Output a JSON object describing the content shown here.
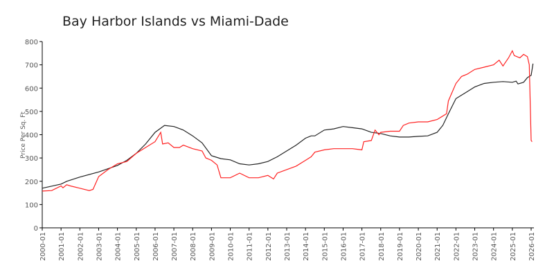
{
  "chart_data": {
    "type": "line",
    "title": "Bay Harbor Islands vs Miami-Dade",
    "xlabel": "",
    "ylabel": "Price Per Sq. Ft",
    "ylim": [
      0,
      800
    ],
    "xlim": [
      2000,
      2026.15
    ],
    "yticks": [
      0,
      100,
      200,
      300,
      400,
      500,
      600,
      700,
      800
    ],
    "xticks": [
      "2000-01",
      "2001-01",
      "2002-01",
      "2003-01",
      "2004-01",
      "2005-01",
      "2006-01",
      "2007-01",
      "2008-01",
      "2009-01",
      "2010-01",
      "2011-01",
      "2012-01",
      "2013-01",
      "2014-01",
      "2015-01",
      "2016-01",
      "2017-01",
      "2018-01",
      "2019-01",
      "2020-01",
      "2021-01",
      "2022-01",
      "2023-01",
      "2024-01",
      "2025-01",
      "2026-01"
    ],
    "grid": false,
    "series": [
      {
        "name": "Miami-Dade",
        "color": "#222222",
        "x": [
          2000,
          2001,
          2001.3,
          2002,
          2003,
          2004,
          2004.5,
          2005,
          2005.5,
          2006,
          2006.5,
          2007,
          2007.5,
          2008,
          2008.5,
          2009,
          2009.5,
          2010,
          2010.5,
          2011,
          2011.5,
          2012,
          2012.5,
          2013,
          2013.5,
          2014,
          2014.3,
          2014.5,
          2015,
          2015.5,
          2016,
          2016.5,
          2017,
          2017.5,
          2018,
          2018.5,
          2019,
          2019.5,
          2020,
          2020.5,
          2021,
          2021.3,
          2021.6,
          2022,
          2022.5,
          2023,
          2023.5,
          2024,
          2024.5,
          2025,
          2025.2,
          2025.3,
          2025.6,
          2025.8,
          2026,
          2026.1
        ],
        "y": [
          170,
          188,
          200,
          218,
          240,
          268,
          290,
          320,
          360,
          410,
          440,
          435,
          420,
          395,
          365,
          310,
          297,
          292,
          275,
          270,
          275,
          285,
          305,
          330,
          355,
          385,
          395,
          395,
          420,
          425,
          435,
          430,
          425,
          410,
          405,
          395,
          390,
          390,
          393,
          395,
          410,
          440,
          490,
          555,
          580,
          605,
          620,
          625,
          628,
          625,
          630,
          618,
          625,
          645,
          655,
          705
        ]
      },
      {
        "name": "Bay Harbor Islands",
        "color": "#ff2020",
        "x": [
          2000,
          2000.5,
          2001,
          2001.1,
          2001.3,
          2001.5,
          2002,
          2002.5,
          2002.7,
          2003,
          2003.5,
          2004,
          2004.5,
          2005,
          2005.5,
          2006,
          2006.3,
          2006.4,
          2006.7,
          2007,
          2007.3,
          2007.5,
          2008,
          2008.5,
          2008.7,
          2009,
          2009.3,
          2009.5,
          2010,
          2010.5,
          2011,
          2011.5,
          2012,
          2012.3,
          2012.5,
          2013,
          2013.5,
          2014,
          2014.3,
          2014.5,
          2015,
          2015.5,
          2016,
          2016.5,
          2017,
          2017.1,
          2017.5,
          2017.7,
          2017.9,
          2018,
          2018.5,
          2019,
          2019.2,
          2019.5,
          2020,
          2020.5,
          2021,
          2021.5,
          2021.6,
          2022,
          2022.3,
          2022.6,
          2023,
          2023.5,
          2024,
          2024.3,
          2024.5,
          2024.8,
          2025,
          2025.1,
          2025.4,
          2025.6,
          2025.8,
          2025.9,
          2026,
          2026.05
        ],
        "y": [
          158,
          160,
          180,
          172,
          185,
          180,
          170,
          160,
          165,
          220,
          250,
          275,
          285,
          320,
          345,
          370,
          410,
          360,
          365,
          345,
          345,
          355,
          340,
          330,
          300,
          290,
          270,
          215,
          215,
          235,
          215,
          215,
          225,
          210,
          235,
          250,
          265,
          290,
          305,
          325,
          335,
          340,
          340,
          340,
          335,
          370,
          375,
          420,
          400,
          410,
          415,
          415,
          440,
          450,
          455,
          455,
          465,
          490,
          545,
          620,
          650,
          660,
          680,
          690,
          700,
          720,
          695,
          730,
          760,
          740,
          730,
          745,
          735,
          700,
          375,
          370
        ]
      }
    ]
  }
}
